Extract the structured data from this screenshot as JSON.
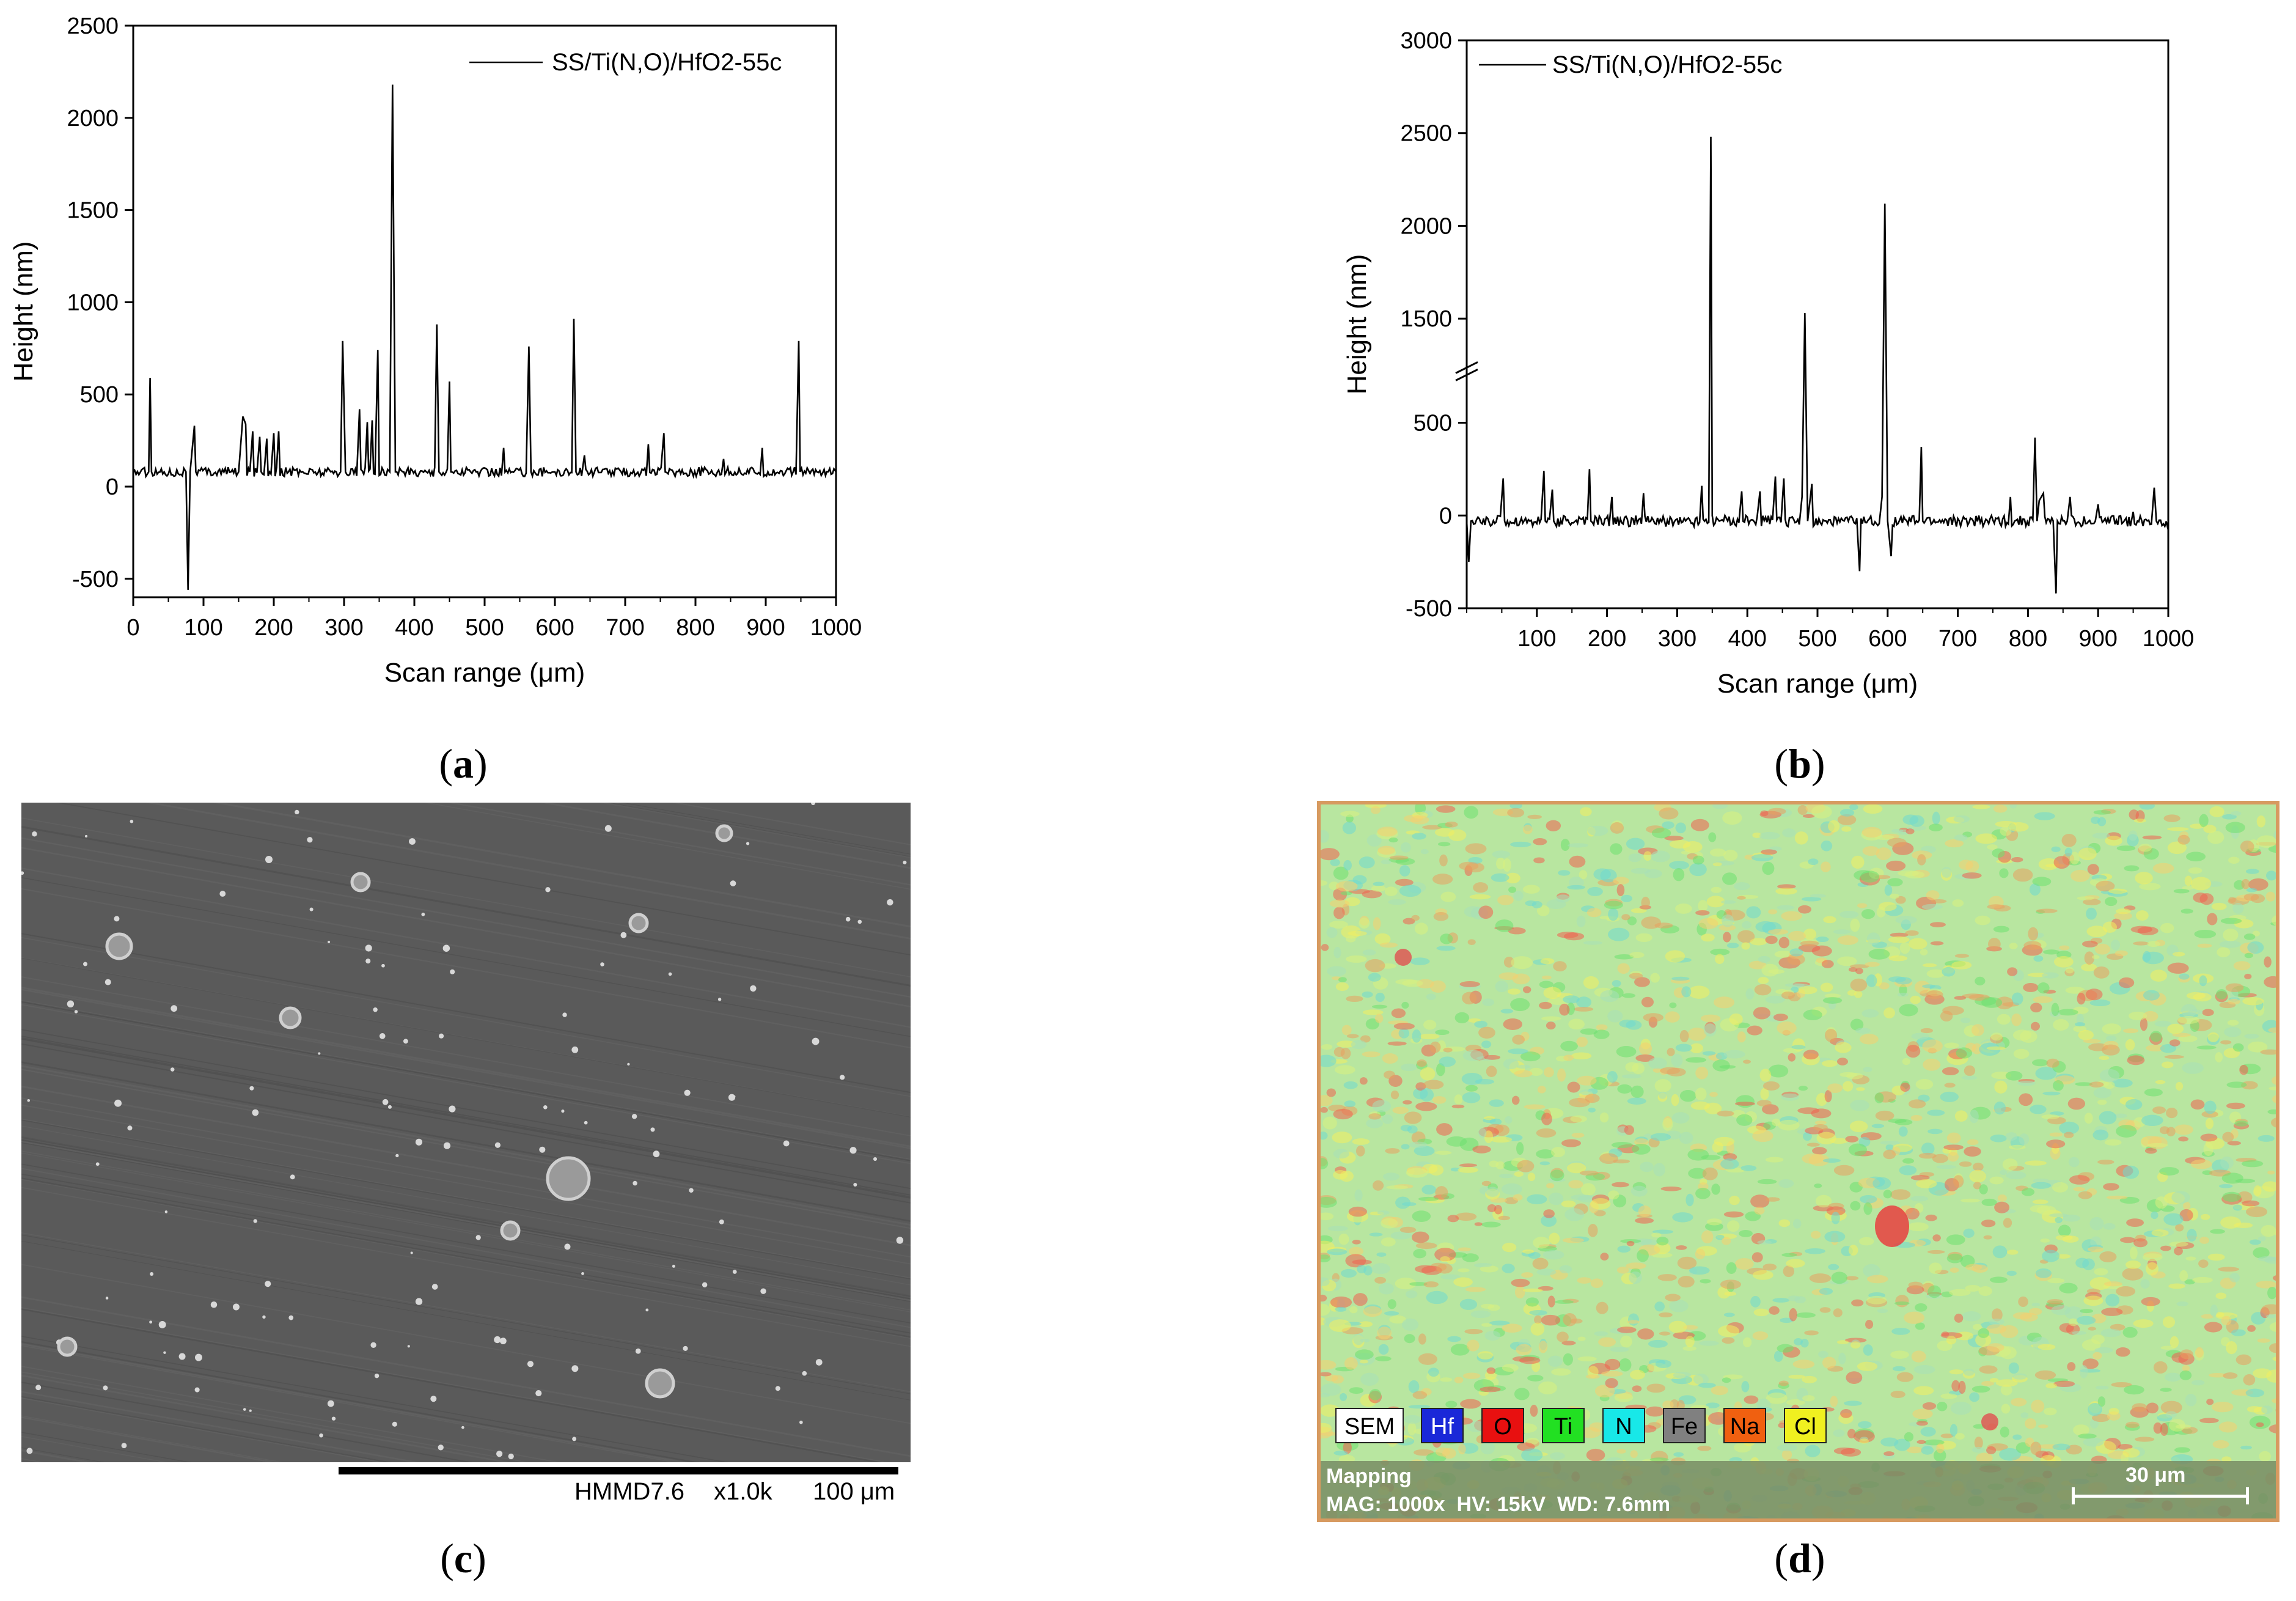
{
  "chart_data": [
    {
      "type": "line",
      "panel": "a",
      "series": [
        {
          "name": "SS/Ti(N,O)/HfO2-55c"
        }
      ],
      "xlabel": "Scan range (μm)",
      "ylabel": "Height (nm)",
      "xlim": [
        0,
        1000
      ],
      "ylim": [
        -600,
        2500
      ],
      "xticks": [
        "0",
        "100",
        "200",
        "300",
        "400",
        "500",
        "600",
        "700",
        "800",
        "900",
        "1000"
      ],
      "yticks": [
        "-500",
        "0",
        "500",
        "1000",
        "1500",
        "2000",
        "2500"
      ],
      "baseline": 80,
      "x": [
        0,
        22,
        24,
        26,
        75,
        78,
        81,
        87,
        89,
        150,
        156,
        160,
        170,
        180,
        190,
        200,
        207,
        295,
        298,
        302,
        322,
        333,
        340,
        348,
        365,
        369,
        373,
        432,
        435,
        450,
        452,
        527,
        563,
        566,
        600,
        627,
        630,
        642,
        733,
        755,
        840,
        895,
        947,
        949,
        1000
      ],
      "values": [
        80,
        80,
        590,
        80,
        80,
        -560,
        80,
        330,
        80,
        80,
        380,
        340,
        300,
        270,
        260,
        290,
        300,
        80,
        790,
        80,
        420,
        350,
        360,
        740,
        80,
        2180,
        80,
        880,
        80,
        570,
        80,
        210,
        760,
        80,
        80,
        910,
        80,
        170,
        230,
        290,
        150,
        210,
        790,
        80,
        80
      ],
      "grid": false,
      "legend": "top-right"
    },
    {
      "type": "line",
      "panel": "b",
      "series": [
        {
          "name": "SS/Ti(N,O)/HfO2-55c"
        }
      ],
      "xlabel": "Scan range (μm)",
      "ylabel": "Height (nm)",
      "xlim": [
        0,
        1000
      ],
      "ylim": [
        -500,
        3000
      ],
      "axis_break": [
        750,
        1250
      ],
      "xticks": [
        "100",
        "200",
        "300",
        "400",
        "500",
        "600",
        "700",
        "800",
        "900",
        "1000"
      ],
      "yticks": [
        "-500",
        "0",
        "500",
        "1500",
        "2000",
        "2500",
        "3000"
      ],
      "baseline": -30,
      "x": [
        0,
        3,
        6,
        52,
        54,
        110,
        112,
        122,
        124,
        175,
        177,
        207,
        252,
        335,
        348,
        360,
        392,
        418,
        440,
        452,
        478,
        482,
        486,
        492,
        560,
        592,
        596,
        600,
        605,
        648,
        650,
        775,
        810,
        813,
        816,
        822,
        840,
        842,
        860,
        900,
        950,
        980,
        983,
        1000
      ],
      "values": [
        -30,
        -250,
        -30,
        200,
        -30,
        240,
        -30,
        140,
        -30,
        250,
        -30,
        100,
        120,
        160,
        2480,
        -30,
        130,
        130,
        210,
        200,
        100,
        1530,
        -30,
        170,
        -300,
        100,
        2120,
        -30,
        -220,
        370,
        -30,
        100,
        420,
        -30,
        80,
        120,
        -420,
        -30,
        100,
        60,
        20,
        150,
        -30,
        -80
      ],
      "grid": false,
      "legend": "top-left"
    }
  ],
  "captions": {
    "a": "a",
    "b": "b",
    "c": "c",
    "d": "d"
  },
  "sem": {
    "instrument": "HMMD7.6",
    "magnification": "x1.0k",
    "scale": "100 μm"
  },
  "mapping": {
    "title": "Mapping",
    "params": "MAG: 1000x  HV: 15kV  WD: 7.6mm",
    "scale": "30 μm",
    "legend": [
      {
        "label": "SEM",
        "color": "#ffffff",
        "text": "#000000"
      },
      {
        "label": "Hf",
        "color": "#1a28d8",
        "text": "#ffffff"
      },
      {
        "label": "O",
        "color": "#e81010",
        "text": "#000000"
      },
      {
        "label": "Ti",
        "color": "#22e022",
        "text": "#000000"
      },
      {
        "label": "N",
        "color": "#18e8e8",
        "text": "#000000"
      },
      {
        "label": "Fe",
        "color": "#808080",
        "text": "#000000"
      },
      {
        "label": "Na",
        "color": "#f06010",
        "text": "#000000"
      },
      {
        "label": "Cl",
        "color": "#f0f020",
        "text": "#000000"
      }
    ]
  }
}
